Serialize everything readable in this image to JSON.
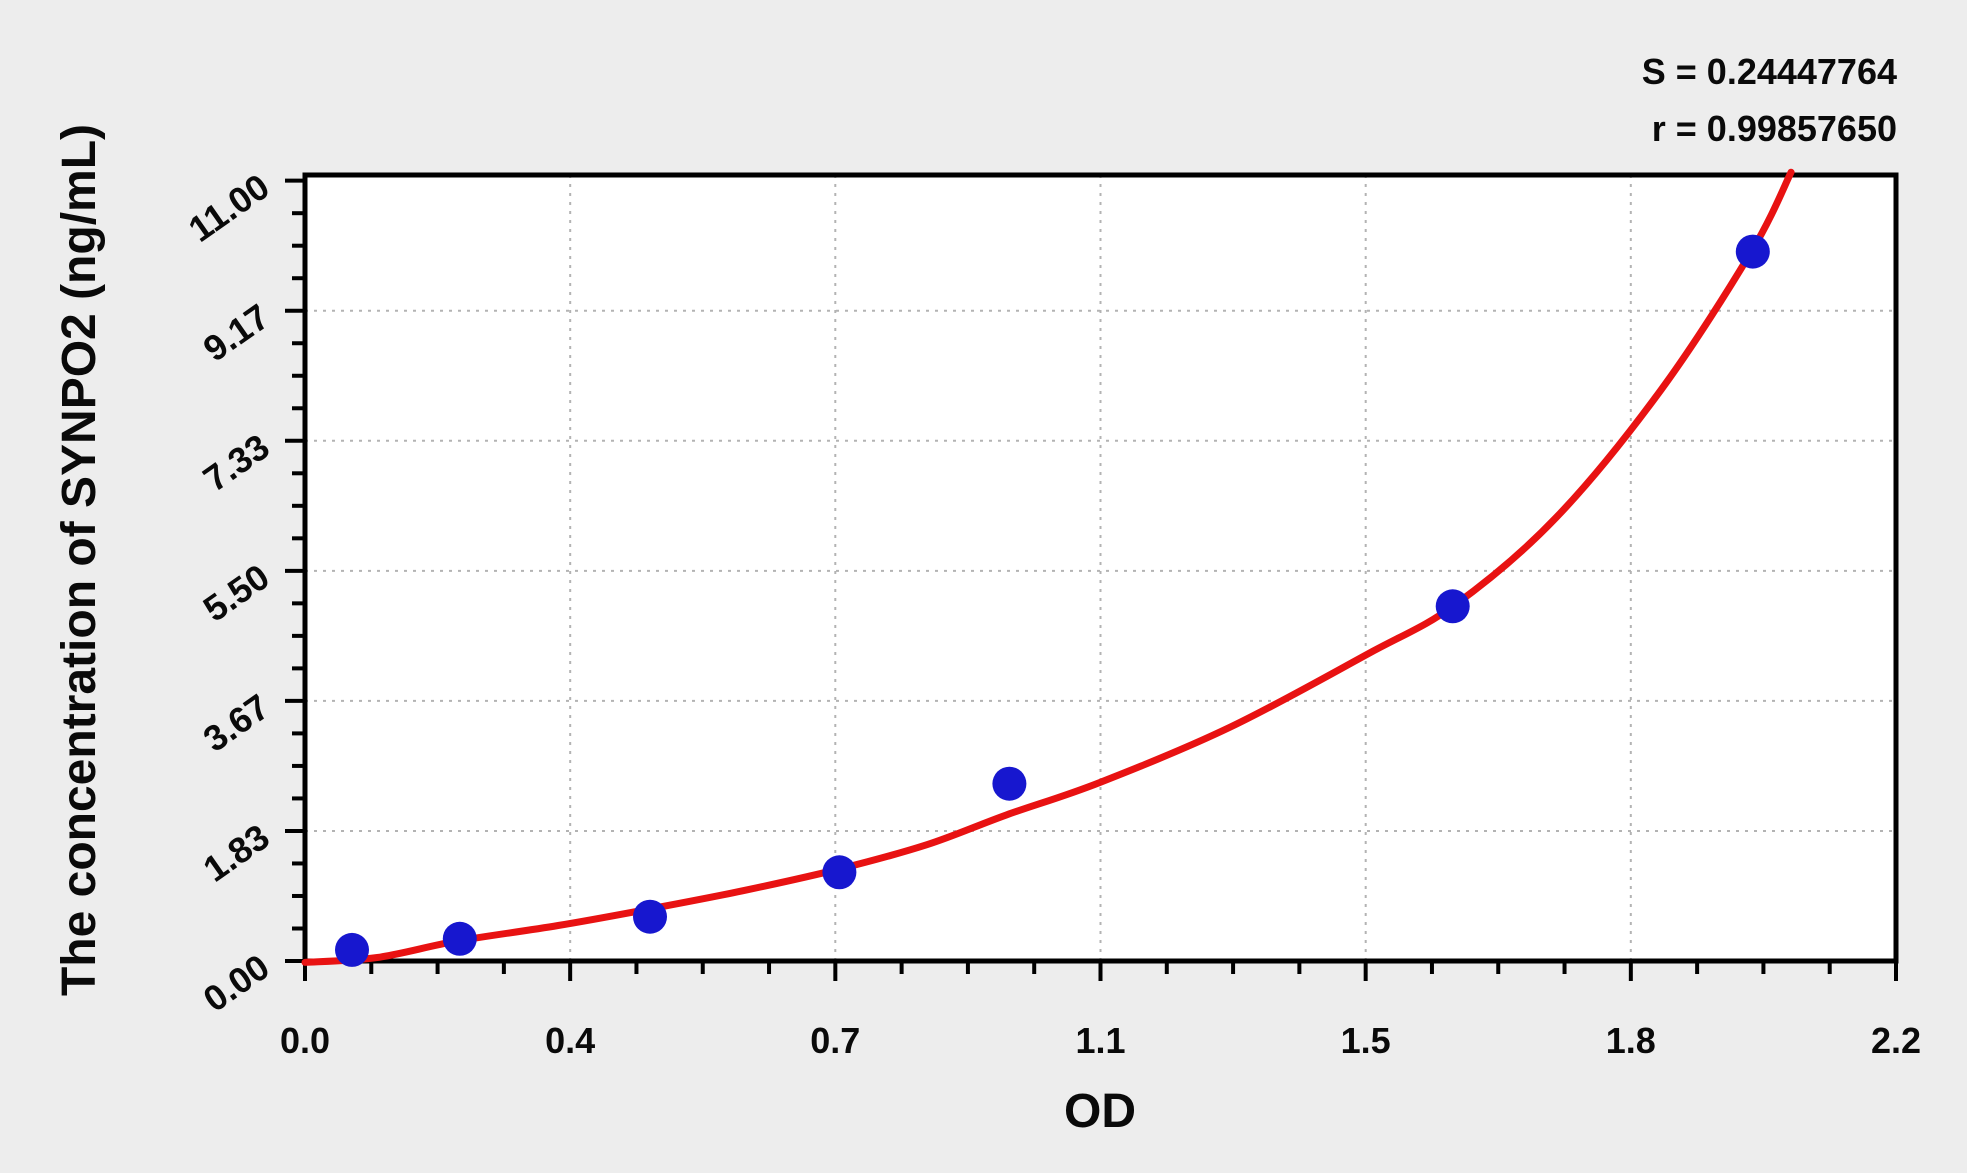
{
  "figure": {
    "stats": {
      "s_line": "S = 0.24447764",
      "r_line": "r = 0.99857650"
    }
  },
  "chart_data": {
    "type": "scatter",
    "title": "",
    "xlabel": "OD",
    "ylabel": "The concentration of SYNPO2 (ng/mL)",
    "xlim": [
      0,
      2.2
    ],
    "ylim": [
      0,
      11.08
    ],
    "grid": "dashed gridlines at labeled major ticks, full plot frame, outward ticks",
    "legend": "none",
    "x_tick_values": [
      0.0,
      0.3667,
      0.7333,
      1.1,
      1.4667,
      1.8333,
      2.2
    ],
    "x_tick_labels": [
      "0.0",
      "0.4",
      "0.7",
      "1.1",
      "1.5",
      "1.8",
      "2.2"
    ],
    "y_tick_values": [
      0.0,
      1.8333,
      3.6667,
      5.5,
      7.3333,
      9.1667,
      11.0
    ],
    "y_tick_labels": [
      "0.00",
      "1.83",
      "3.67",
      "5.50",
      "7.33",
      "9.17",
      "11.00"
    ],
    "minor_ticks_per_major_interval": 3,
    "series": [
      {
        "name": "standard-points",
        "type": "scatter",
        "marker": "circle",
        "color": "#1717cf",
        "x": [
          0.065,
          0.214,
          0.477,
          0.739,
          0.974,
          1.587,
          2.002
        ],
        "y": [
          0.156,
          0.3125,
          0.625,
          1.25,
          2.5,
          5.0,
          10.0
        ]
      },
      {
        "name": "fitted-curve",
        "type": "line",
        "color": "#e81212",
        "x": [
          0.0,
          0.1,
          0.21,
          0.35,
          0.48,
          0.61,
          0.74,
          0.86,
          0.97,
          1.1,
          1.28,
          1.47,
          1.59,
          1.73,
          1.875,
          2.0,
          2.055
        ],
        "y": [
          -0.02,
          0.05,
          0.28,
          0.5,
          0.74,
          1.0,
          1.3,
          1.64,
          2.06,
          2.52,
          3.3,
          4.33,
          5.02,
          6.25,
          8.05,
          10.0,
          11.12
        ]
      }
    ],
    "annotations": {
      "S": "0.24447764",
      "r": "0.99857650"
    },
    "colors": {
      "background": "#ededed",
      "plot_background": "#ffffff",
      "frame": "#000000",
      "gridline": "#b3b3b3",
      "point": "#1717cf",
      "curve": "#e81212"
    }
  }
}
